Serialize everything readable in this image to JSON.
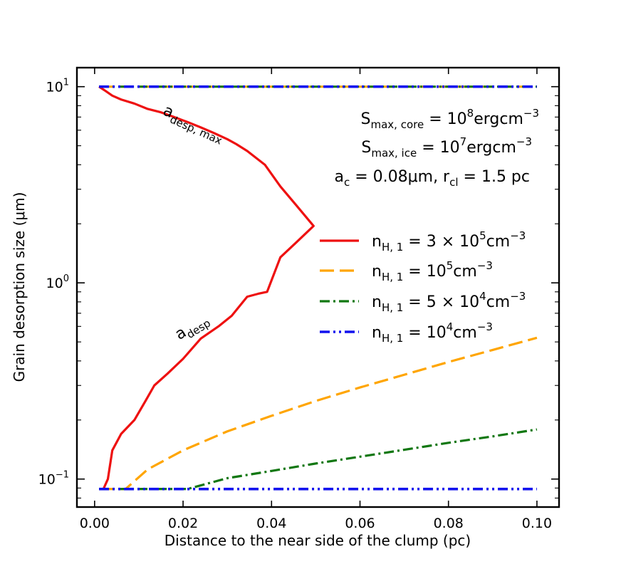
{
  "chart_data": {
    "type": "line",
    "xlabel": "Distance to the near side of the clump (pc)",
    "ylabel": "Grain desorption size (μm)",
    "xlim": [
      -0.004,
      0.105
    ],
    "ylim": [
      0.072,
      12.5
    ],
    "yscale": "log",
    "x_ticks": [
      0.0,
      0.02,
      0.04,
      0.06,
      0.08,
      0.1
    ],
    "x_tick_labels": [
      "0.00",
      "0.02",
      "0.04",
      "0.06",
      "0.08",
      "0.10"
    ],
    "y_ticks": [
      {
        "value": 0.1,
        "base": "10",
        "exp": "−1"
      },
      {
        "value": 1,
        "base": "10",
        "exp": "0"
      },
      {
        "value": 10,
        "base": "10",
        "exp": "1"
      }
    ],
    "annotations": {
      "line1": {
        "main": "S",
        "sub": "max, core",
        "eq": " = 10",
        "sup": "8",
        "tail": "ergcm",
        "tail_sup": "−3"
      },
      "line2": {
        "main": "S",
        "sub": "max, ice",
        "eq": " = 10",
        "sup": "7",
        "tail": "ergcm",
        "tail_sup": "−3"
      },
      "line3": {
        "p1": "a",
        "p1_sub": "c",
        "p2": " = 0.08μm, r",
        "p2_sub": "cl",
        "p3": " = 1.5 pc"
      },
      "curve_labels": [
        {
          "main": "a",
          "sub": "desp, max",
          "x": 0.022,
          "y": 6.2,
          "angle": 24
        },
        {
          "main": "a",
          "sub": "desp",
          "x": 0.0225,
          "y": 0.57,
          "angle": -32
        }
      ]
    },
    "legend_placement": "center-right",
    "series": [
      {
        "name": "n_H,1 = 3e5",
        "label": {
          "main": "n",
          "sub": "H, 1",
          "eq": " = 3 × 10",
          "sup": "5",
          "tail": "cm",
          "tail_sup": "−3"
        },
        "color": "#ee1111",
        "dash": "solid",
        "width": 3.2,
        "x": [
          0.001,
          0.0025,
          0.004,
          0.006,
          0.009,
          0.012,
          0.015,
          0.018,
          0.021,
          0.024,
          0.027,
          0.03,
          0.032,
          0.0345,
          0.0385,
          0.042,
          0.0455,
          0.0495,
          0.0455,
          0.042,
          0.039,
          0.037,
          0.0345,
          0.031,
          0.028,
          0.024,
          0.02,
          0.0165,
          0.0135,
          0.0115,
          0.009,
          0.006,
          0.004,
          0.003,
          0.002
        ],
        "y": [
          10.0,
          9.5,
          9.0,
          8.6,
          8.2,
          7.7,
          7.4,
          7.0,
          6.6,
          6.2,
          5.8,
          5.4,
          5.1,
          4.7,
          4.0,
          3.1,
          2.5,
          1.95,
          1.6,
          1.35,
          0.9,
          0.88,
          0.85,
          0.68,
          0.6,
          0.52,
          0.41,
          0.345,
          0.3,
          0.25,
          0.2,
          0.17,
          0.14,
          0.1,
          0.089
        ]
      },
      {
        "name": "n_H,1 = 1e5",
        "label": {
          "main": "n",
          "sub": "H, 1",
          "eq": " = 10",
          "sup": "5",
          "tail": "cm",
          "tail_sup": "−3"
        },
        "color": "#ffa500",
        "dash": "long-dash",
        "width": 3.2,
        "segments": [
          {
            "x": [
              0.001,
              0.1
            ],
            "y": [
              10.0,
              10.0
            ]
          },
          {
            "x": [
              0.001,
              0.007,
              0.012,
              0.02,
              0.03,
              0.04,
              0.05,
              0.06,
              0.07,
              0.08,
              0.09,
              0.1
            ],
            "y": [
              0.089,
              0.089,
              0.112,
              0.14,
              0.175,
              0.21,
              0.25,
              0.293,
              0.34,
              0.395,
              0.455,
              0.525
            ]
          }
        ]
      },
      {
        "name": "n_H,1 = 5e4",
        "label": {
          "main": "n",
          "sub": "H, 1",
          "eq": " = 5 × 10",
          "sup": "4",
          "tail": "cm",
          "tail_sup": "−3"
        },
        "color": "#117711",
        "dash": "dash-dot",
        "width": 3.2,
        "segments": [
          {
            "x": [
              0.001,
              0.1
            ],
            "y": [
              10.0,
              10.0
            ]
          },
          {
            "x": [
              0.001,
              0.021,
              0.03,
              0.04,
              0.05,
              0.06,
              0.07,
              0.08,
              0.09,
              0.1
            ],
            "y": [
              0.089,
              0.089,
              0.101,
              0.11,
              0.12,
              0.13,
              0.141,
              0.153,
              0.165,
              0.179
            ]
          }
        ]
      },
      {
        "name": "n_H,1 = 1e4",
        "label": {
          "main": "n",
          "sub": "H, 1",
          "eq": " = 10",
          "sup": "4",
          "tail": "cm",
          "tail_sup": "−3"
        },
        "color": "#1111ee",
        "dash": "dash-dot-dot",
        "width": 3.6,
        "segments": [
          {
            "x": [
              0.001,
              0.1
            ],
            "y": [
              10.0,
              10.0
            ]
          },
          {
            "x": [
              0.001,
              0.1
            ],
            "y": [
              0.089,
              0.089
            ]
          }
        ]
      }
    ]
  }
}
